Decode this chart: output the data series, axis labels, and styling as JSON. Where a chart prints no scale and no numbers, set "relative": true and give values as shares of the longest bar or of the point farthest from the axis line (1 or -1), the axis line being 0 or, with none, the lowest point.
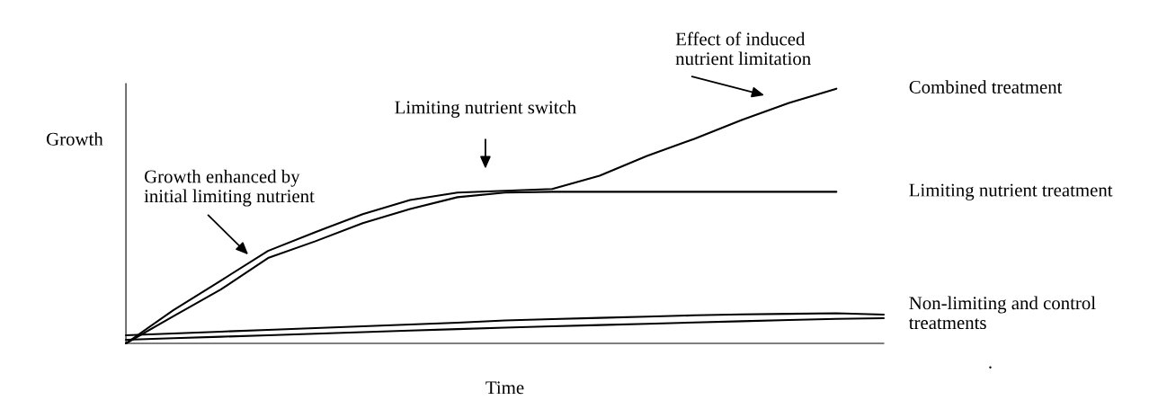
{
  "chart_data": {
    "type": "line",
    "relative": true,
    "xlabel": "Time",
    "ylabel": "Growth",
    "categories": [
      null,
      null,
      null,
      null,
      null,
      null,
      null,
      null,
      null,
      null,
      null,
      null,
      null,
      null,
      null,
      null,
      null
    ],
    "series": [
      {
        "name": "Combined treatment",
        "color": "#000000",
        "values": [
          0,
          0.13,
          0.246,
          0.363,
          0.437,
          0.507,
          0.563,
          0.592,
          0.599,
          0.606,
          0.658,
          0.736,
          0.803,
          0.877,
          0.944,
          1,
          null
        ]
      },
      {
        "name": "Limiting nutrient treatment",
        "color": "#000000",
        "values": [
          0,
          0.106,
          0.211,
          0.335,
          0.401,
          0.472,
          0.528,
          0.574,
          0.592,
          0.595,
          0.595,
          0.595,
          0.595,
          0.595,
          0.595,
          0.595,
          null
        ]
      },
      {
        "name": "Non-limiting and control treatments",
        "color": "#000000",
        "values": [
          0.032,
          0.039,
          0.046,
          0.053,
          0.06,
          0.067,
          0.074,
          0.081,
          0.09,
          0.095,
          0.1,
          0.105,
          0.11,
          0.114,
          0.116,
          0.118,
          0.113
        ]
      },
      {
        "color": "#000000",
        "values": [
          0.014,
          0.02,
          0.026,
          0.032,
          0.038,
          0.044,
          0.05,
          0.056,
          0.062,
          0.067,
          0.072,
          0.077,
          0.082,
          0.087,
          0.092,
          0.096,
          0.099
        ]
      }
    ],
    "annotations": [
      "Growth enhanced by\ninitial limiting nutrient",
      "Limiting nutrient switch",
      "Effect of induced\nnutrient limitation",
      "."
    ],
    "marker": "none",
    "line_style": "solid"
  }
}
